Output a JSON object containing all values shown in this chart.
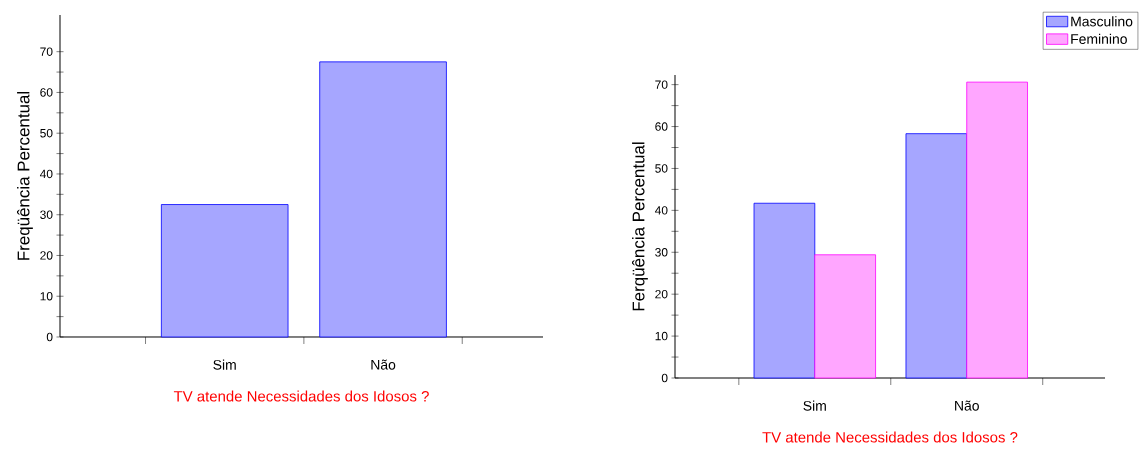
{
  "chart_data": [
    {
      "type": "bar",
      "categories": [
        "Sim",
        "Não"
      ],
      "values": [
        32.5,
        67.5
      ],
      "color": "#0000ff",
      "xlabel": "TV atende Necessidades dos Idosos ?",
      "ylabel": "Freqüência Percentual",
      "ylim": [
        0,
        79
      ],
      "yticks": [
        0,
        10,
        20,
        30,
        40,
        50,
        60,
        70
      ]
    },
    {
      "type": "bar",
      "categories": [
        "Sim",
        "Não"
      ],
      "series": [
        {
          "name": "Masculino",
          "color": "#0000ff",
          "values": [
            41.7,
            58.3
          ]
        },
        {
          "name": "Feminino",
          "color": "#ff00ff",
          "values": [
            29.4,
            70.6
          ]
        }
      ],
      "xlabel": "TV atende Necessidades dos Idosos ?",
      "ylabel": "Ferqüência Percentual",
      "ylim": [
        0,
        72.3
      ],
      "yticks": [
        0,
        10,
        20,
        30,
        40,
        50,
        60,
        70
      ],
      "legend": "top right"
    }
  ]
}
